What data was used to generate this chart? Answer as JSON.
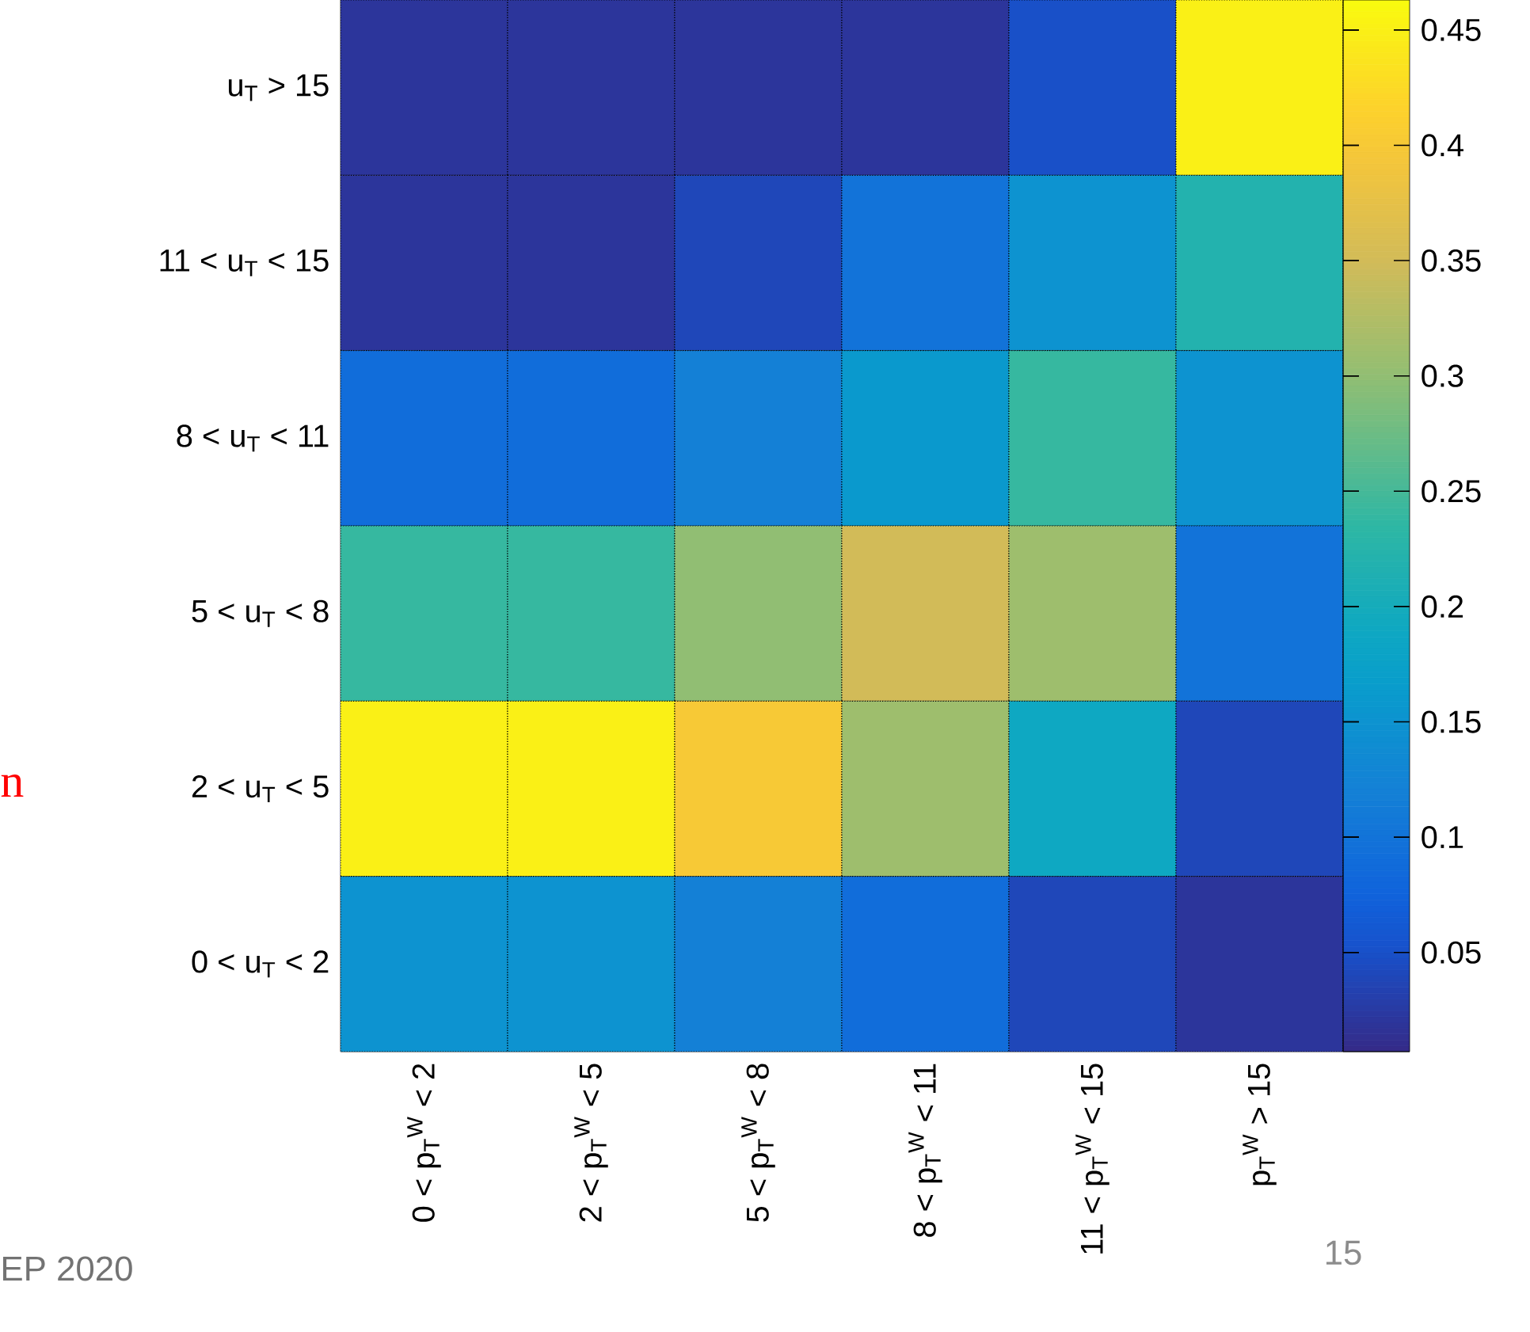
{
  "chart_data": {
    "type": "heatmap",
    "categories": [
      "0 < p$_{T}$$^{W}$ < 2",
      "2 < p$_{T}$$^{W}$ < 5",
      "5 < p$_{T}$$^{W}$ < 8",
      "8 < p$_{T}$$^{W}$ < 11",
      "11 < p$_{T}$$^{W}$ < 15",
      "p$_{T}$$^{W}$ > 15"
    ],
    "y_categories": [
      "u$_{T}$ > 15",
      "11 < u$_{T}$ < 15",
      "8 < u$_{T}$ < 11",
      "5 < u$_{T}$ <  8",
      "2 < u$_{T}$ <  5",
      "0 < u$_{T}$ <  2"
    ],
    "cells": [
      [
        0.02,
        0.02,
        0.02,
        0.02,
        0.05,
        0.45
      ],
      [
        0.02,
        0.02,
        0.04,
        0.1,
        0.15,
        0.22
      ],
      [
        0.09,
        0.09,
        0.12,
        0.16,
        0.24,
        0.15
      ],
      [
        0.24,
        0.24,
        0.3,
        0.35,
        0.31,
        0.1
      ],
      [
        0.45,
        0.45,
        0.4,
        0.31,
        0.19,
        0.04
      ],
      [
        0.15,
        0.15,
        0.12,
        0.09,
        0.04,
        0.02
      ]
    ],
    "clim": [
      0.007,
      0.463
    ],
    "cticks": [
      0.05,
      0.1,
      0.15,
      0.2,
      0.25,
      0.3,
      0.35,
      0.4,
      0.45
    ],
    "annotations": [
      "n",
      "EP 2020",
      "15"
    ]
  }
}
